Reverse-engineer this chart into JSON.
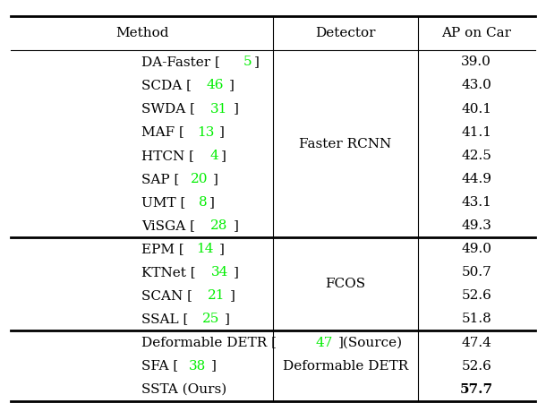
{
  "headers": [
    "Method",
    "Detector",
    "AP on Car"
  ],
  "groups": [
    {
      "detector": "Faster RCNN",
      "rows": [
        {
          "method_parts": [
            {
              "text": "DA-Faster [",
              "color": "black"
            },
            {
              "text": "5",
              "color": "#00ee00"
            },
            {
              "text": "]",
              "color": "black"
            }
          ],
          "ap": "39.0"
        },
        {
          "method_parts": [
            {
              "text": "SCDA [",
              "color": "black"
            },
            {
              "text": "46",
              "color": "#00ee00"
            },
            {
              "text": "]",
              "color": "black"
            }
          ],
          "ap": "43.0"
        },
        {
          "method_parts": [
            {
              "text": "SWDA [",
              "color": "black"
            },
            {
              "text": "31",
              "color": "#00ee00"
            },
            {
              "text": "]",
              "color": "black"
            }
          ],
          "ap": "40.1"
        },
        {
          "method_parts": [
            {
              "text": "MAF [",
              "color": "black"
            },
            {
              "text": "13",
              "color": "#00ee00"
            },
            {
              "text": "]",
              "color": "black"
            }
          ],
          "ap": "41.1"
        },
        {
          "method_parts": [
            {
              "text": "HTCN [",
              "color": "black"
            },
            {
              "text": "4",
              "color": "#00ee00"
            },
            {
              "text": "]",
              "color": "black"
            }
          ],
          "ap": "42.5"
        },
        {
          "method_parts": [
            {
              "text": "SAP [",
              "color": "black"
            },
            {
              "text": "20",
              "color": "#00ee00"
            },
            {
              "text": "]",
              "color": "black"
            }
          ],
          "ap": "44.9"
        },
        {
          "method_parts": [
            {
              "text": "UMT [",
              "color": "black"
            },
            {
              "text": "8",
              "color": "#00ee00"
            },
            {
              "text": "]",
              "color": "black"
            }
          ],
          "ap": "43.1"
        },
        {
          "method_parts": [
            {
              "text": "ViSGA [",
              "color": "black"
            },
            {
              "text": "28",
              "color": "#00ee00"
            },
            {
              "text": "]",
              "color": "black"
            }
          ],
          "ap": "49.3"
        }
      ]
    },
    {
      "detector": "FCOS",
      "rows": [
        {
          "method_parts": [
            {
              "text": "EPM [",
              "color": "black"
            },
            {
              "text": "14",
              "color": "#00ee00"
            },
            {
              "text": "]",
              "color": "black"
            }
          ],
          "ap": "49.0"
        },
        {
          "method_parts": [
            {
              "text": "KTNet [",
              "color": "black"
            },
            {
              "text": "34",
              "color": "#00ee00"
            },
            {
              "text": "]",
              "color": "black"
            }
          ],
          "ap": "50.7"
        },
        {
          "method_parts": [
            {
              "text": "SCAN [",
              "color": "black"
            },
            {
              "text": "21",
              "color": "#00ee00"
            },
            {
              "text": "]",
              "color": "black"
            }
          ],
          "ap": "52.6"
        },
        {
          "method_parts": [
            {
              "text": "SSAL [",
              "color": "black"
            },
            {
              "text": "25",
              "color": "#00ee00"
            },
            {
              "text": "]",
              "color": "black"
            }
          ],
          "ap": "51.8"
        }
      ]
    },
    {
      "detector": "Deformable DETR",
      "rows": [
        {
          "method_parts": [
            {
              "text": "Deformable DETR [",
              "color": "black"
            },
            {
              "text": "47",
              "color": "#00ee00"
            },
            {
              "text": "](Source)",
              "color": "black"
            }
          ],
          "ap": "47.4",
          "ap_bold": false
        },
        {
          "method_parts": [
            {
              "text": "SFA [",
              "color": "black"
            },
            {
              "text": "38",
              "color": "#00ee00"
            },
            {
              "text": "]",
              "color": "black"
            }
          ],
          "ap": "52.6",
          "ap_bold": false
        },
        {
          "method_parts": [
            {
              "text": "SSTA (Ours)",
              "color": "black"
            }
          ],
          "ap": "57.7",
          "ap_bold": true
        }
      ]
    }
  ],
  "font_size": 11,
  "header_font_size": 11,
  "thick_lw": 2.0,
  "thin_lw": 0.8,
  "col_boundaries": [
    0.02,
    0.5,
    0.765,
    0.98
  ],
  "bg_color": "white"
}
